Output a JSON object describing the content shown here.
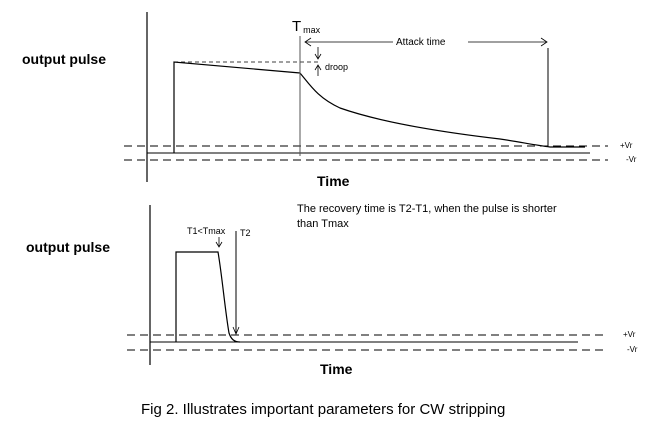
{
  "top_panel": {
    "ylabel": "output pulse",
    "xlabel": "Time",
    "tmax_T": "T",
    "tmax_sub": "max",
    "attack_label": "Attack time",
    "droop_label": "droop",
    "plus_vr": "+Vr",
    "minus_vr": "-Vr"
  },
  "note": {
    "line1": "The recovery time is T2-T1, when the pulse is shorter",
    "line2": "than Tmax"
  },
  "bottom_panel": {
    "ylabel": "output pulse",
    "xlabel": "Time",
    "t1_label": "T1<Tmax",
    "t2_label": "T2",
    "plus_vr": "+Vr",
    "minus_vr": "-Vr"
  },
  "caption": "Fig 2.  Illustrates important parameters for CW stripping"
}
